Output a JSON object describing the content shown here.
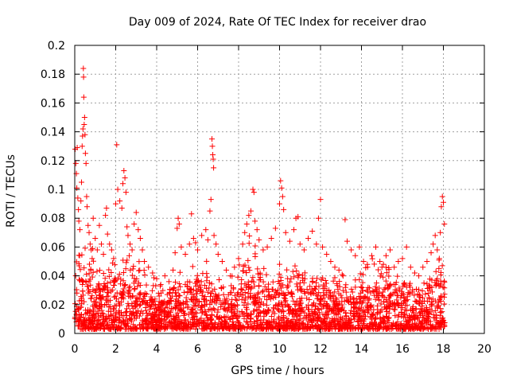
{
  "chart_data": {
    "type": "scatter",
    "title": "Day 009 of 2024, Rate Of TEC Index for receiver drao",
    "xlabel": "GPS time / hours",
    "ylabel": "ROTI / TECUs",
    "xlim": [
      0,
      20
    ],
    "ylim": [
      0,
      0.2
    ],
    "x_ticks": [
      0,
      2,
      4,
      6,
      8,
      10,
      12,
      14,
      16,
      18,
      20
    ],
    "x_tick_labels": [
      "0",
      "2",
      "4",
      "6",
      "8",
      "10",
      "12",
      "14",
      "16",
      "18",
      "20"
    ],
    "y_ticks": [
      0,
      0.02,
      0.04,
      0.06,
      0.08,
      0.1,
      0.12,
      0.14,
      0.16,
      0.18,
      0.2
    ],
    "y_tick_labels": [
      "0",
      "0.02",
      "0.04",
      "0.06",
      "0.08",
      "0.1",
      "0.12",
      "0.14",
      "0.16",
      "0.18",
      "0.2"
    ],
    "grid": true,
    "marker": "plus",
    "color": "#ff0000",
    "series": [
      {
        "points": [
          [
            0.02,
            0.128
          ],
          [
            0.05,
            0.118
          ],
          [
            0.08,
            0.111
          ],
          [
            0.1,
            0.101
          ],
          [
            0.12,
            0.129
          ],
          [
            0.15,
            0.094
          ],
          [
            0.18,
            0.086
          ],
          [
            0.2,
            0.078
          ],
          [
            0.25,
            0.072
          ],
          [
            0.3,
            0.092
          ],
          [
            0.33,
            0.105
          ],
          [
            0.36,
            0.13
          ],
          [
            0.38,
            0.137
          ],
          [
            0.4,
            0.142
          ],
          [
            0.42,
            0.184
          ],
          [
            0.43,
            0.178
          ],
          [
            0.44,
            0.164
          ],
          [
            0.46,
            0.145
          ],
          [
            0.48,
            0.15
          ],
          [
            0.5,
            0.138
          ],
          [
            0.52,
            0.125
          ],
          [
            0.55,
            0.118
          ],
          [
            0.58,
            0.095
          ],
          [
            0.6,
            0.088
          ],
          [
            0.65,
            0.075
          ],
          [
            0.7,
            0.07
          ],
          [
            0.75,
            0.062
          ],
          [
            0.8,
            0.058
          ],
          [
            0.85,
            0.052
          ],
          [
            0.9,
            0.08
          ],
          [
            1.0,
            0.066
          ],
          [
            1.1,
            0.058
          ],
          [
            1.2,
            0.075
          ],
          [
            1.3,
            0.062
          ],
          [
            1.4,
            0.055
          ],
          [
            1.5,
            0.082
          ],
          [
            1.55,
            0.087
          ],
          [
            1.6,
            0.069
          ],
          [
            1.7,
            0.062
          ],
          [
            1.8,
            0.058
          ],
          [
            1.9,
            0.052
          ],
          [
            2.0,
            0.09
          ],
          [
            2.05,
            0.131
          ],
          [
            2.1,
            0.1
          ],
          [
            2.2,
            0.092
          ],
          [
            2.3,
            0.087
          ],
          [
            2.35,
            0.104
          ],
          [
            2.4,
            0.113
          ],
          [
            2.45,
            0.108
          ],
          [
            2.5,
            0.098
          ],
          [
            2.55,
            0.074
          ],
          [
            2.6,
            0.068
          ],
          [
            2.7,
            0.062
          ],
          [
            2.8,
            0.058
          ],
          [
            2.9,
            0.076
          ],
          [
            3.0,
            0.084
          ],
          [
            3.1,
            0.072
          ],
          [
            3.2,
            0.066
          ],
          [
            3.3,
            0.058
          ],
          [
            3.4,
            0.05
          ],
          [
            3.6,
            0.046
          ],
          [
            3.8,
            0.042
          ],
          [
            4.0,
            0.038
          ],
          [
            4.2,
            0.034
          ],
          [
            4.4,
            0.04
          ],
          [
            4.6,
            0.036
          ],
          [
            4.8,
            0.044
          ],
          [
            4.9,
            0.056
          ],
          [
            5.0,
            0.073
          ],
          [
            5.05,
            0.08
          ],
          [
            5.1,
            0.076
          ],
          [
            5.2,
            0.06
          ],
          [
            5.4,
            0.055
          ],
          [
            5.6,
            0.062
          ],
          [
            5.7,
            0.083
          ],
          [
            5.8,
            0.066
          ],
          [
            5.9,
            0.063
          ],
          [
            6.0,
            0.058
          ],
          [
            6.2,
            0.068
          ],
          [
            6.4,
            0.072
          ],
          [
            6.5,
            0.065
          ],
          [
            6.6,
            0.085
          ],
          [
            6.65,
            0.093
          ],
          [
            6.7,
            0.135
          ],
          [
            6.72,
            0.13
          ],
          [
            6.74,
            0.124
          ],
          [
            6.76,
            0.121
          ],
          [
            6.78,
            0.115
          ],
          [
            6.8,
            0.068
          ],
          [
            6.9,
            0.062
          ],
          [
            7.0,
            0.055
          ],
          [
            7.2,
            0.05
          ],
          [
            7.4,
            0.044
          ],
          [
            7.6,
            0.04
          ],
          [
            7.8,
            0.046
          ],
          [
            8.0,
            0.052
          ],
          [
            8.2,
            0.062
          ],
          [
            8.3,
            0.07
          ],
          [
            8.4,
            0.076
          ],
          [
            8.5,
            0.082
          ],
          [
            8.6,
            0.085
          ],
          [
            8.7,
            0.1
          ],
          [
            8.75,
            0.098
          ],
          [
            8.8,
            0.078
          ],
          [
            8.9,
            0.072
          ],
          [
            9.0,
            0.065
          ],
          [
            9.2,
            0.058
          ],
          [
            9.4,
            0.06
          ],
          [
            9.6,
            0.066
          ],
          [
            9.8,
            0.073
          ],
          [
            10.0,
            0.09
          ],
          [
            10.05,
            0.106
          ],
          [
            10.1,
            0.101
          ],
          [
            10.15,
            0.095
          ],
          [
            10.2,
            0.086
          ],
          [
            10.3,
            0.07
          ],
          [
            10.5,
            0.064
          ],
          [
            10.7,
            0.072
          ],
          [
            10.8,
            0.08
          ],
          [
            10.9,
            0.081
          ],
          [
            11.0,
            0.062
          ],
          [
            11.2,
            0.058
          ],
          [
            11.4,
            0.066
          ],
          [
            11.6,
            0.071
          ],
          [
            11.8,
            0.062
          ],
          [
            11.9,
            0.08
          ],
          [
            12.0,
            0.093
          ],
          [
            12.1,
            0.06
          ],
          [
            12.3,
            0.055
          ],
          [
            12.5,
            0.05
          ],
          [
            12.7,
            0.046
          ],
          [
            12.9,
            0.044
          ],
          [
            13.1,
            0.04
          ],
          [
            13.2,
            0.079
          ],
          [
            13.3,
            0.064
          ],
          [
            13.5,
            0.058
          ],
          [
            13.7,
            0.054
          ],
          [
            13.9,
            0.06
          ],
          [
            14.1,
            0.05
          ],
          [
            14.3,
            0.046
          ],
          [
            14.5,
            0.054
          ],
          [
            14.7,
            0.06
          ],
          [
            14.9,
            0.05
          ],
          [
            15.0,
            0.046
          ],
          [
            15.2,
            0.054
          ],
          [
            15.4,
            0.058
          ],
          [
            15.6,
            0.046
          ],
          [
            15.8,
            0.05
          ],
          [
            16.0,
            0.052
          ],
          [
            16.2,
            0.06
          ],
          [
            16.4,
            0.046
          ],
          [
            16.6,
            0.042
          ],
          [
            16.8,
            0.04
          ],
          [
            17.0,
            0.046
          ],
          [
            17.2,
            0.05
          ],
          [
            17.4,
            0.056
          ],
          [
            17.5,
            0.062
          ],
          [
            17.6,
            0.068
          ],
          [
            17.7,
            0.058
          ],
          [
            17.8,
            0.052
          ],
          [
            17.85,
            0.07
          ],
          [
            17.9,
            0.088
          ],
          [
            17.95,
            0.095
          ],
          [
            18.0,
            0.091
          ],
          [
            18.05,
            0.076
          ]
        ],
        "dense_band": {
          "x_range": [
            0,
            18.1
          ],
          "envelope": [
            [
              0,
              0.05
            ],
            [
              0.5,
              0.06
            ],
            [
              1,
              0.05
            ],
            [
              1.5,
              0.045
            ],
            [
              2,
              0.05
            ],
            [
              2.5,
              0.055
            ],
            [
              3,
              0.05
            ],
            [
              3.5,
              0.038
            ],
            [
              4,
              0.033
            ],
            [
              4.5,
              0.032
            ],
            [
              5,
              0.04
            ],
            [
              5.5,
              0.042
            ],
            [
              6,
              0.045
            ],
            [
              6.5,
              0.05
            ],
            [
              7,
              0.036
            ],
            [
              7.5,
              0.03
            ],
            [
              8,
              0.045
            ],
            [
              8.5,
              0.06
            ],
            [
              9,
              0.05
            ],
            [
              9.5,
              0.035
            ],
            [
              10,
              0.05
            ],
            [
              10.5,
              0.04
            ],
            [
              11,
              0.045
            ],
            [
              11.5,
              0.05
            ],
            [
              12,
              0.045
            ],
            [
              12.5,
              0.035
            ],
            [
              13,
              0.038
            ],
            [
              13.5,
              0.032
            ],
            [
              14,
              0.04
            ],
            [
              14.5,
              0.045
            ],
            [
              15,
              0.05
            ],
            [
              15.5,
              0.045
            ],
            [
              16,
              0.04
            ],
            [
              16.5,
              0.035
            ],
            [
              17,
              0.038
            ],
            [
              17.5,
              0.048
            ],
            [
              18,
              0.055
            ]
          ],
          "floor": 0.003
        }
      }
    ]
  }
}
